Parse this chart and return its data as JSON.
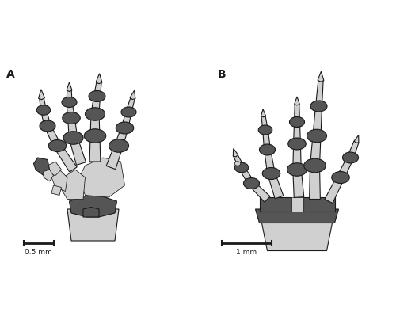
{
  "title_a": "A",
  "title_b": "B",
  "scale_a": "0.5 mm",
  "scale_b": "1 mm",
  "bg_color": "#ffffff",
  "bone_fill": "#d0d0d0",
  "dark_fill": "#555555",
  "outline_color": "#1a1a1a",
  "lw": 0.8
}
